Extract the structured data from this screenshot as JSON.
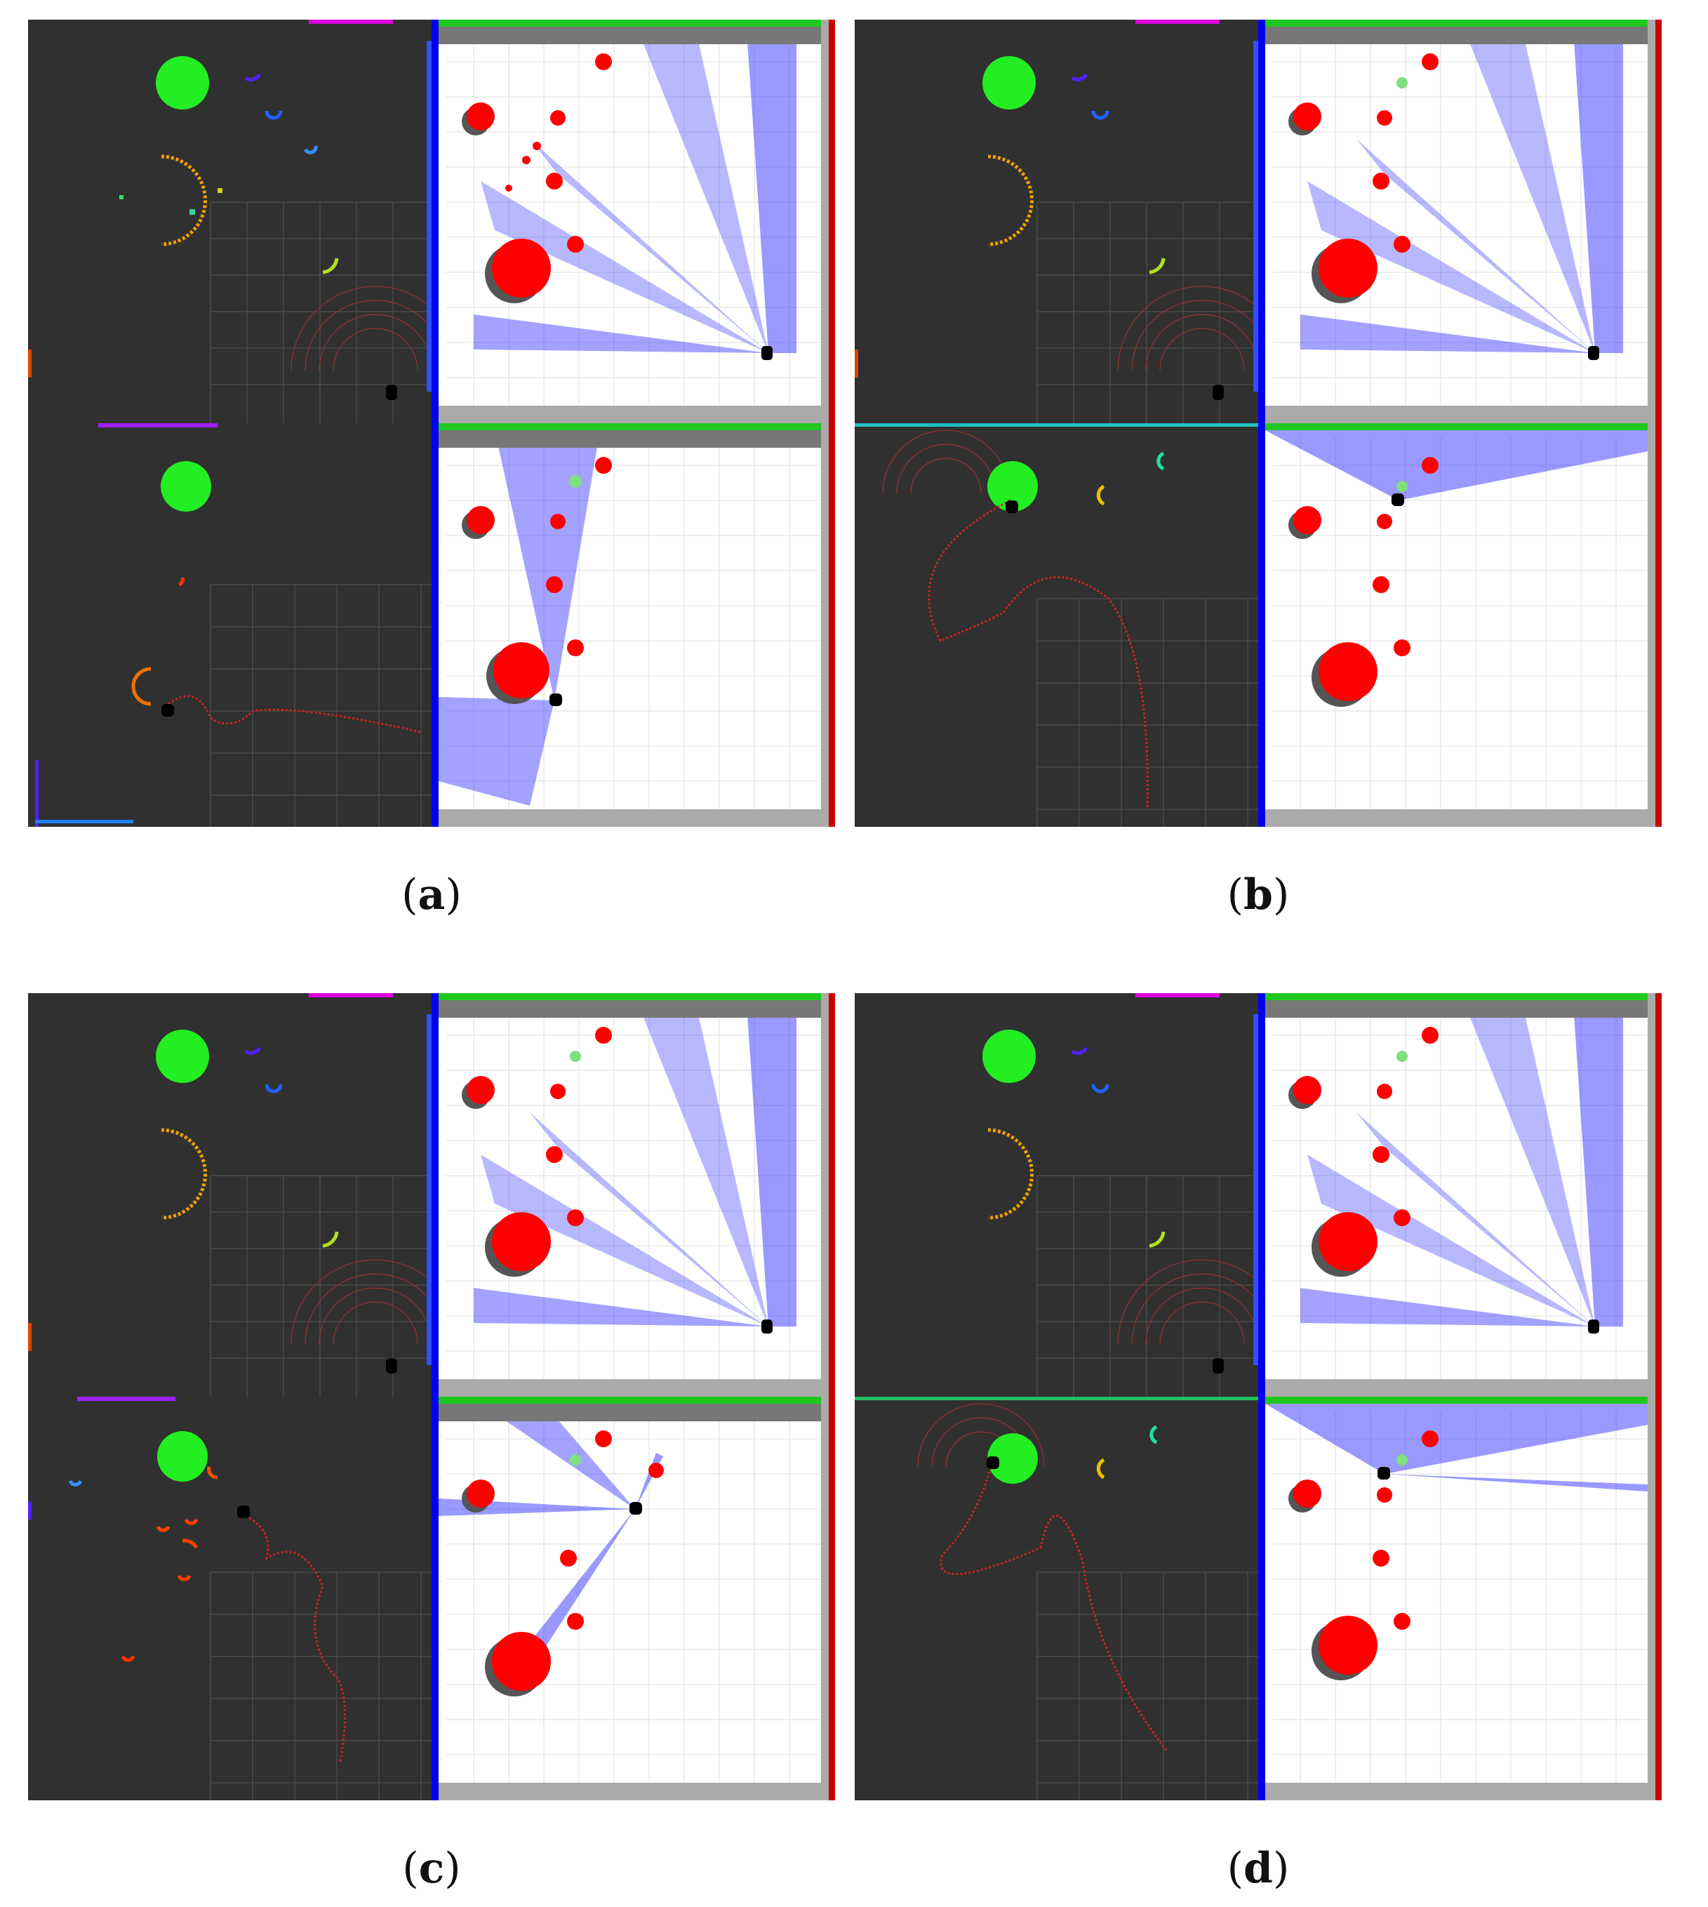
{
  "colors": {
    "rviz_background": "#303030",
    "goal": "#22ee22",
    "obstacle": "#ff0000",
    "laser": "#3333ff",
    "wall_top": "#1ec81e",
    "wall_left": "#0000ee",
    "wall_right": "#cc0000",
    "trajectory": "#cc2222"
  },
  "figure": {
    "subfigures": [
      {
        "id": "a",
        "caption_open": "(",
        "caption_label": "a",
        "caption_close": ")"
      },
      {
        "id": "b",
        "caption_open": "(",
        "caption_label": "b",
        "caption_close": ")"
      },
      {
        "id": "c",
        "caption_open": "(",
        "caption_label": "c",
        "caption_close": ")"
      },
      {
        "id": "d",
        "caption_open": "(",
        "caption_label": "d",
        "caption_close": ")"
      }
    ]
  },
  "scene": {
    "goal_icon": "green-circle",
    "obstacle_icon": "red-cylinder",
    "robot_icon": "robot"
  }
}
